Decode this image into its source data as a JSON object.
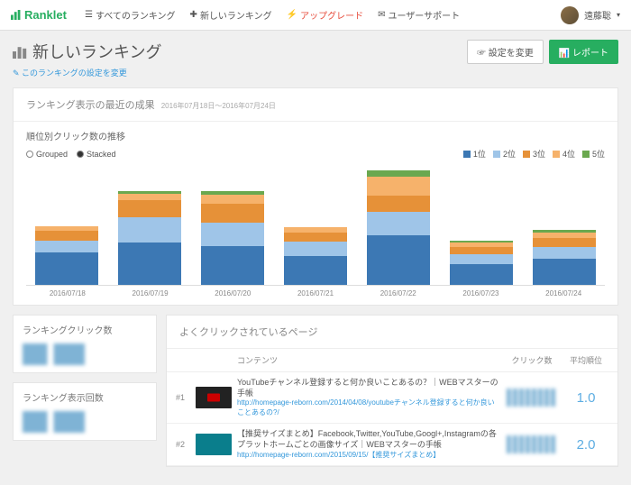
{
  "nav": {
    "brand": "Ranklet",
    "all": "すべてのランキング",
    "new": "新しいランキング",
    "upgrade": "アップグレード",
    "support": "ユーザーサポート",
    "user": "遠藤聡"
  },
  "page": {
    "title": "新しいランキング",
    "subtitle": "このランキングの設定を変更",
    "settings_btn": "設定を変更",
    "report_btn": "レポート"
  },
  "results": {
    "title": "ランキング表示の最近の成果",
    "daterange": "2016年07月18日～2016年07月24日"
  },
  "chart": {
    "title": "順位別クリック数の推移",
    "mode_grouped": "Grouped",
    "mode_stacked": "Stacked",
    "legend": [
      "1位",
      "2位",
      "3位",
      "4位",
      "5位"
    ],
    "colors": [
      "#3c78b4",
      "#9fc5e8",
      "#e69138",
      "#f6b26b",
      "#6aa84f"
    ],
    "ymax": 100,
    "categories": [
      "2016/07/18",
      "2016/07/19",
      "2016/07/20",
      "2016/07/21",
      "2016/07/22",
      "2016/07/23",
      "2016/07/24"
    ],
    "series": [
      [
        28,
        36,
        33,
        25,
        42,
        18,
        22
      ],
      [
        10,
        22,
        20,
        12,
        20,
        8,
        10
      ],
      [
        8,
        14,
        16,
        8,
        14,
        6,
        8
      ],
      [
        4,
        6,
        8,
        4,
        16,
        4,
        5
      ],
      [
        0,
        2,
        3,
        0,
        6,
        2,
        2
      ]
    ]
  },
  "side": {
    "clicks_title": "ランキングクリック数",
    "views_title": "ランキング表示回数"
  },
  "table": {
    "title": "よくクリックされているページ",
    "col_content": "コンテンツ",
    "col_clicks": "クリック数",
    "col_rank": "平均順位",
    "rows": [
      {
        "idx": "#1",
        "title": "YouTubeチャンネル登録すると何か良いことあるの？｜WEBマスターの手帳",
        "url": "http://homepage-reborn.com/2014/04/08/youtubeチャンネル登録すると何か良いことあるの?/",
        "rank": "1.0",
        "thumb": "yt"
      },
      {
        "idx": "#2",
        "title": "【推奨サイズまとめ】Facebook,Twitter,YouTube,Googl+,Instagramの各プラットホームごとの画像サイズ｜WEBマスターの手帳",
        "url": "http://homepage-reborn.com/2015/09/15/【推奨サイズまとめ】",
        "rank": "2.0",
        "thumb": "teal"
      }
    ]
  }
}
